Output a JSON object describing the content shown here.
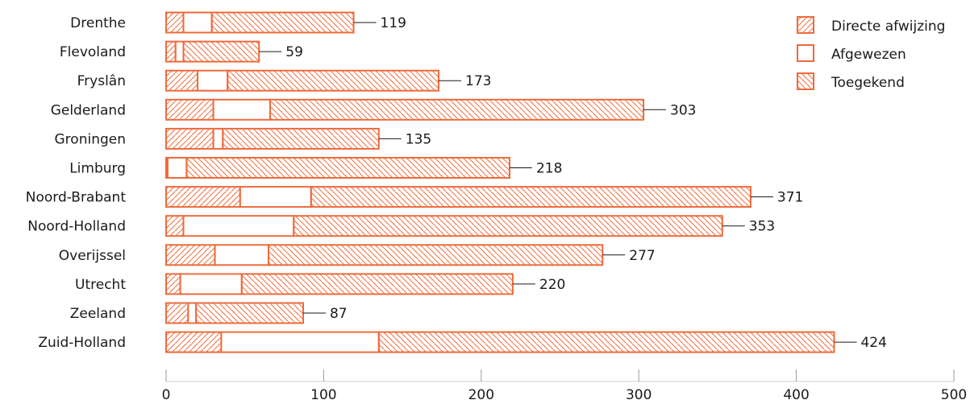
{
  "chart_data": {
    "type": "bar",
    "orientation": "horizontal",
    "stacked": true,
    "categories": [
      "Drenthe",
      "Flevoland",
      "Fryslân",
      "Gelderland",
      "Groningen",
      "Limburg",
      "Noord-Brabant",
      "Noord-Holland",
      "Overijssel",
      "Utrecht",
      "Zeeland",
      "Zuid-Holland"
    ],
    "series": [
      {
        "name": "Directe afwijzing",
        "values": [
          11,
          6,
          20,
          30,
          30,
          1,
          47,
          11,
          31,
          9,
          14,
          35
        ],
        "pattern": "diagonal-up"
      },
      {
        "name": "Afgewezen",
        "values": [
          18,
          5,
          19,
          36,
          6,
          12,
          45,
          70,
          34,
          39,
          5,
          100
        ],
        "pattern": "none"
      },
      {
        "name": "Toegekend",
        "values": [
          90,
          48,
          134,
          237,
          99,
          205,
          279,
          272,
          212,
          172,
          68,
          289
        ],
        "pattern": "diagonal-down"
      }
    ],
    "totals": [
      "119",
      "59",
      "173",
      "303",
      "135",
      "218",
      "371",
      "353",
      "277",
      "220",
      "87",
      "424"
    ],
    "xlim": [
      0,
      500
    ],
    "xticks": [
      "0",
      "100",
      "200",
      "300",
      "400",
      "500"
    ],
    "grid": false,
    "legend_position": "top-right",
    "color": "#EE6A3A"
  }
}
